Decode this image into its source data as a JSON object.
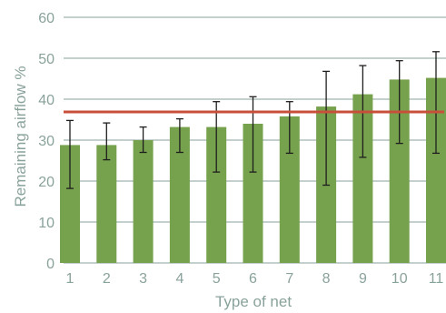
{
  "chart_data": {
    "type": "bar",
    "title": "",
    "xlabel": "Type of net",
    "ylabel": "Remaining airflow %",
    "categories": [
      "1",
      "2",
      "3",
      "4",
      "5",
      "6",
      "7",
      "8",
      "9",
      "10",
      "11"
    ],
    "values": [
      28.8,
      28.8,
      30.0,
      33.2,
      33.2,
      34.0,
      35.8,
      38.2,
      41.2,
      44.8,
      45.2
    ],
    "error_bars": {
      "lower": [
        18.2,
        25.2,
        27.0,
        27.0,
        22.2,
        22.2,
        26.8,
        19.0,
        25.8,
        29.2,
        26.8
      ],
      "upper": [
        34.8,
        34.2,
        33.2,
        35.2,
        39.4,
        40.6,
        39.4,
        46.8,
        48.2,
        49.4,
        51.6
      ]
    },
    "reference_line": {
      "value": 36.9,
      "color": "#c8503a"
    },
    "ylim": [
      0,
      60
    ],
    "yticks": [
      0,
      10,
      20,
      30,
      40,
      50,
      60
    ],
    "grid": true,
    "legend": "none",
    "colors": {
      "bar": "#76a14d",
      "grid": "#8aa29c",
      "error_bar": "#1e1e1e",
      "text": "#8aa29c"
    }
  }
}
